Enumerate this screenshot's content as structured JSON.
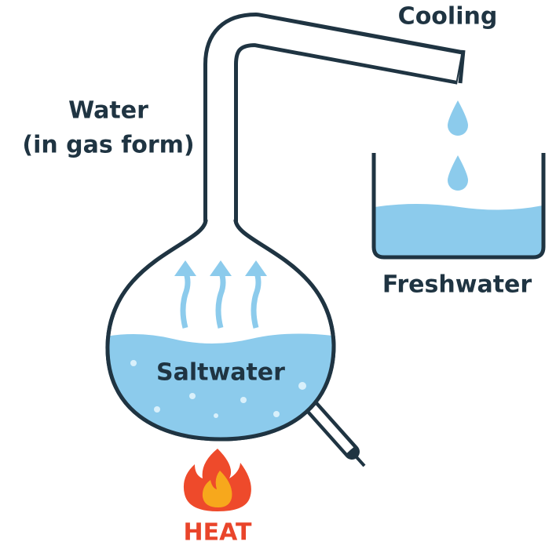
{
  "labels": {
    "cooling": "Cooling",
    "vapor_line1": "Water",
    "vapor_line2": "(in gas form)",
    "freshwater": "Freshwater",
    "saltwater": "Saltwater",
    "heat": "HEAT"
  }
}
